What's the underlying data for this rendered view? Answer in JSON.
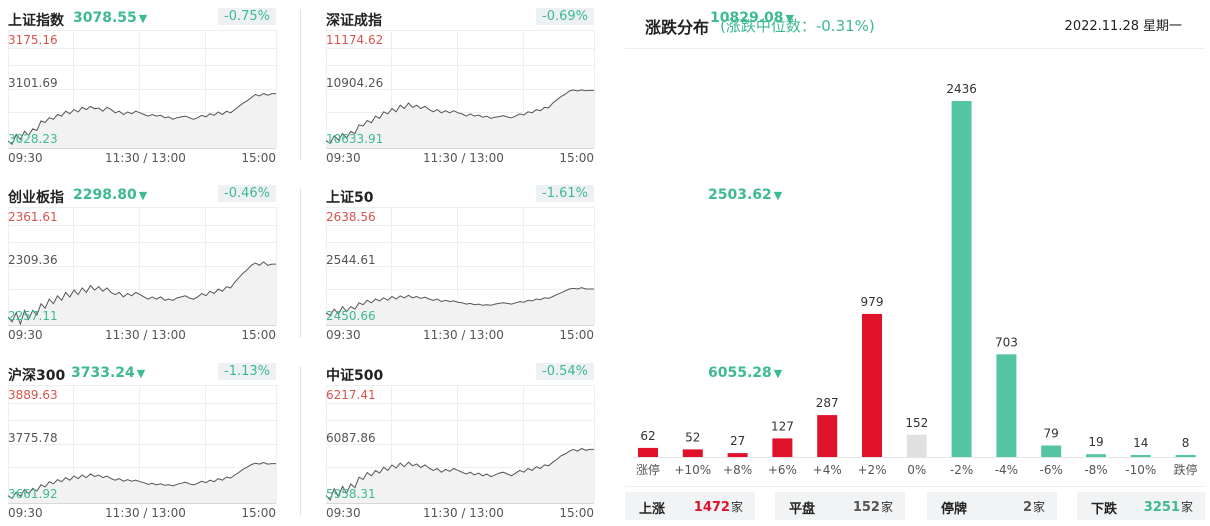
{
  "indices": [
    {
      "name": "上证指数",
      "value": "3078.55",
      "arrow": "▼",
      "change": "-0.75%",
      "high": "3175.16",
      "mid": "3101.69",
      "low": "3028.23",
      "time_start": "09:30",
      "time_mid": "11:30 / 13:00",
      "time_end": "15:00",
      "line": [
        3037,
        3033,
        3045,
        3039,
        3049,
        3044,
        3052,
        3050,
        3062,
        3060,
        3066,
        3064,
        3070,
        3068,
        3074,
        3071,
        3076,
        3073,
        3079,
        3076,
        3080,
        3077,
        3078,
        3074,
        3079,
        3076,
        3072,
        3074,
        3070,
        3073,
        3071,
        3074,
        3072,
        3070,
        3068,
        3070,
        3068,
        3069,
        3066,
        3067,
        3064,
        3066,
        3067,
        3068,
        3066,
        3064,
        3066,
        3069,
        3067,
        3071,
        3069,
        3073,
        3070,
        3074,
        3072,
        3076,
        3080,
        3084,
        3087,
        3091,
        3095,
        3093,
        3096,
        3094,
        3096,
        3096
      ]
    },
    {
      "name": "深证成指",
      "value": "10829.08",
      "arrow": "▼",
      "change": "-0.69%",
      "high": "11174.62",
      "mid": "10904.26",
      "low": "10633.91",
      "time_start": "09:30",
      "time_mid": "11:30 / 13:00",
      "time_end": "15:00",
      "line": [
        10668,
        10655,
        10690,
        10670,
        10700,
        10680,
        10710,
        10700,
        10740,
        10735,
        10760,
        10750,
        10780,
        10770,
        10800,
        10790,
        10815,
        10800,
        10830,
        10815,
        10840,
        10820,
        10830,
        10815,
        10825,
        10810,
        10800,
        10810,
        10795,
        10805,
        10795,
        10805,
        10795,
        10790,
        10780,
        10790,
        10780,
        10785,
        10775,
        10780,
        10770,
        10775,
        10778,
        10782,
        10776,
        10772,
        10780,
        10790,
        10785,
        10800,
        10795,
        10810,
        10805,
        10820,
        10818,
        10840,
        10855,
        10870,
        10880,
        10895,
        10900,
        10895,
        10900,
        10896,
        10898,
        10898
      ]
    },
    {
      "name": "创业板指",
      "value": "2298.80",
      "arrow": "▼",
      "change": "-0.46%",
      "high": "2361.61",
      "mid": "2309.36",
      "low": "2257.11",
      "time_start": "09:30",
      "time_mid": "11:30 / 13:00",
      "time_end": "15:00",
      "line": [
        2264,
        2260,
        2268,
        2258,
        2270,
        2262,
        2270,
        2266,
        2276,
        2272,
        2280,
        2276,
        2283,
        2279,
        2286,
        2282,
        2288,
        2284,
        2290,
        2286,
        2292,
        2288,
        2291,
        2287,
        2290,
        2286,
        2284,
        2286,
        2282,
        2285,
        2283,
        2286,
        2284,
        2282,
        2280,
        2282,
        2280,
        2282,
        2279,
        2280,
        2279,
        2281,
        2282,
        2283,
        2281,
        2280,
        2282,
        2285,
        2283,
        2287,
        2285,
        2289,
        2287,
        2291,
        2290,
        2295,
        2299,
        2303,
        2306,
        2310,
        2312,
        2310,
        2313,
        2310,
        2311,
        2311
      ]
    },
    {
      "name": "上证50",
      "value": "2503.62",
      "arrow": "▼",
      "change": "-1.61%",
      "high": "2638.56",
      "mid": "2544.61",
      "low": "2450.66",
      "time_start": "09:30",
      "time_mid": "11:30 / 13:00",
      "time_end": "15:00",
      "line": [
        2470,
        2466,
        2476,
        2468,
        2480,
        2472,
        2480,
        2476,
        2486,
        2483,
        2490,
        2486,
        2492,
        2489,
        2494,
        2490,
        2496,
        2492,
        2497,
        2494,
        2498,
        2494,
        2496,
        2493,
        2495,
        2492,
        2490,
        2492,
        2488,
        2490,
        2488,
        2489,
        2487,
        2486,
        2484,
        2485,
        2483,
        2484,
        2482,
        2483,
        2482,
        2484,
        2485,
        2486,
        2485,
        2484,
        2486,
        2488,
        2487,
        2490,
        2489,
        2492,
        2491,
        2494,
        2493,
        2496,
        2499,
        2502,
        2505,
        2508,
        2509,
        2508,
        2510,
        2508,
        2508,
        2508
      ]
    },
    {
      "name": "沪深300",
      "value": "3733.24",
      "arrow": "▼",
      "change": "-1.13%",
      "high": "3889.63",
      "mid": "3775.78",
      "low": "3661.92",
      "time_start": "09:30",
      "time_mid": "11:30 / 13:00",
      "time_end": "15:00",
      "line": [
        3676,
        3671,
        3683,
        3675,
        3688,
        3680,
        3690,
        3685,
        3697,
        3693,
        3703,
        3699,
        3707,
        3703,
        3711,
        3706,
        3714,
        3709,
        3716,
        3711,
        3718,
        3713,
        3716,
        3711,
        3714,
        3709,
        3706,
        3709,
        3704,
        3707,
        3704,
        3706,
        3703,
        3701,
        3698,
        3700,
        3697,
        3699,
        3696,
        3697,
        3695,
        3698,
        3700,
        3702,
        3699,
        3697,
        3700,
        3704,
        3701,
        3706,
        3703,
        3709,
        3706,
        3712,
        3710,
        3716,
        3721,
        3727,
        3731,
        3736,
        3739,
        3737,
        3740,
        3737,
        3738,
        3738
      ]
    },
    {
      "name": "中证500",
      "value": "6055.28",
      "arrow": "▼",
      "change": "-0.54%",
      "high": "6217.41",
      "mid": "6087.86",
      "low": "5958.31",
      "time_start": "09:30",
      "time_mid": "11:30 / 13:00",
      "time_end": "15:00",
      "line": [
        5975,
        5965,
        5990,
        5972,
        5995,
        5980,
        6000,
        5992,
        6015,
        6010,
        6025,
        6018,
        6030,
        6024,
        6037,
        6030,
        6042,
        6035,
        6046,
        6038,
        6048,
        6040,
        6044,
        6036,
        6042,
        6035,
        6030,
        6034,
        6026,
        6032,
        6028,
        6034,
        6030,
        6026,
        6022,
        6026,
        6020,
        6024,
        6018,
        6022,
        6016,
        6020,
        6024,
        6026,
        6022,
        6018,
        6024,
        6030,
        6026,
        6034,
        6030,
        6038,
        6034,
        6042,
        6040,
        6048,
        6054,
        6062,
        6066,
        6072,
        6076,
        6072,
        6078,
        6074,
        6076,
        6076
      ]
    }
  ],
  "distribution": {
    "title": "涨跌分布",
    "subtitle": "(涨跌中位数：-0.31%)",
    "date": "2022.11.28",
    "weekday": "星期一"
  },
  "chart_data": {
    "type": "bar",
    "categories": [
      "涨停",
      "+10%",
      "+8%",
      "+6%",
      "+4%",
      "+2%",
      "0%",
      "-2%",
      "-4%",
      "-6%",
      "-8%",
      "-10%",
      "跌停"
    ],
    "values": [
      62,
      52,
      27,
      127,
      287,
      979,
      152,
      2436,
      703,
      79,
      19,
      14,
      8
    ],
    "colors": [
      "#e0122b",
      "#e0122b",
      "#e0122b",
      "#e0122b",
      "#e0122b",
      "#e0122b",
      "#e0e0e0",
      "#55c4a2",
      "#55c4a2",
      "#55c4a2",
      "#55c4a2",
      "#55c4a2",
      "#55c4a2"
    ],
    "ylim": [
      0,
      2436
    ]
  },
  "stats": [
    {
      "label": "上涨",
      "value": "1472",
      "unit": "家",
      "color": "#e0122b"
    },
    {
      "label": "平盘",
      "value": "152",
      "unit": "家",
      "color": "#555555"
    },
    {
      "label": "停牌",
      "value": "2",
      "unit": "家",
      "color": "#555555"
    },
    {
      "label": "下跌",
      "value": "3251",
      "unit": "家",
      "color": "#3dbb8e"
    }
  ],
  "colors": {
    "up": "#e0122b",
    "down": "#3dbb8e",
    "line": "#555555"
  }
}
